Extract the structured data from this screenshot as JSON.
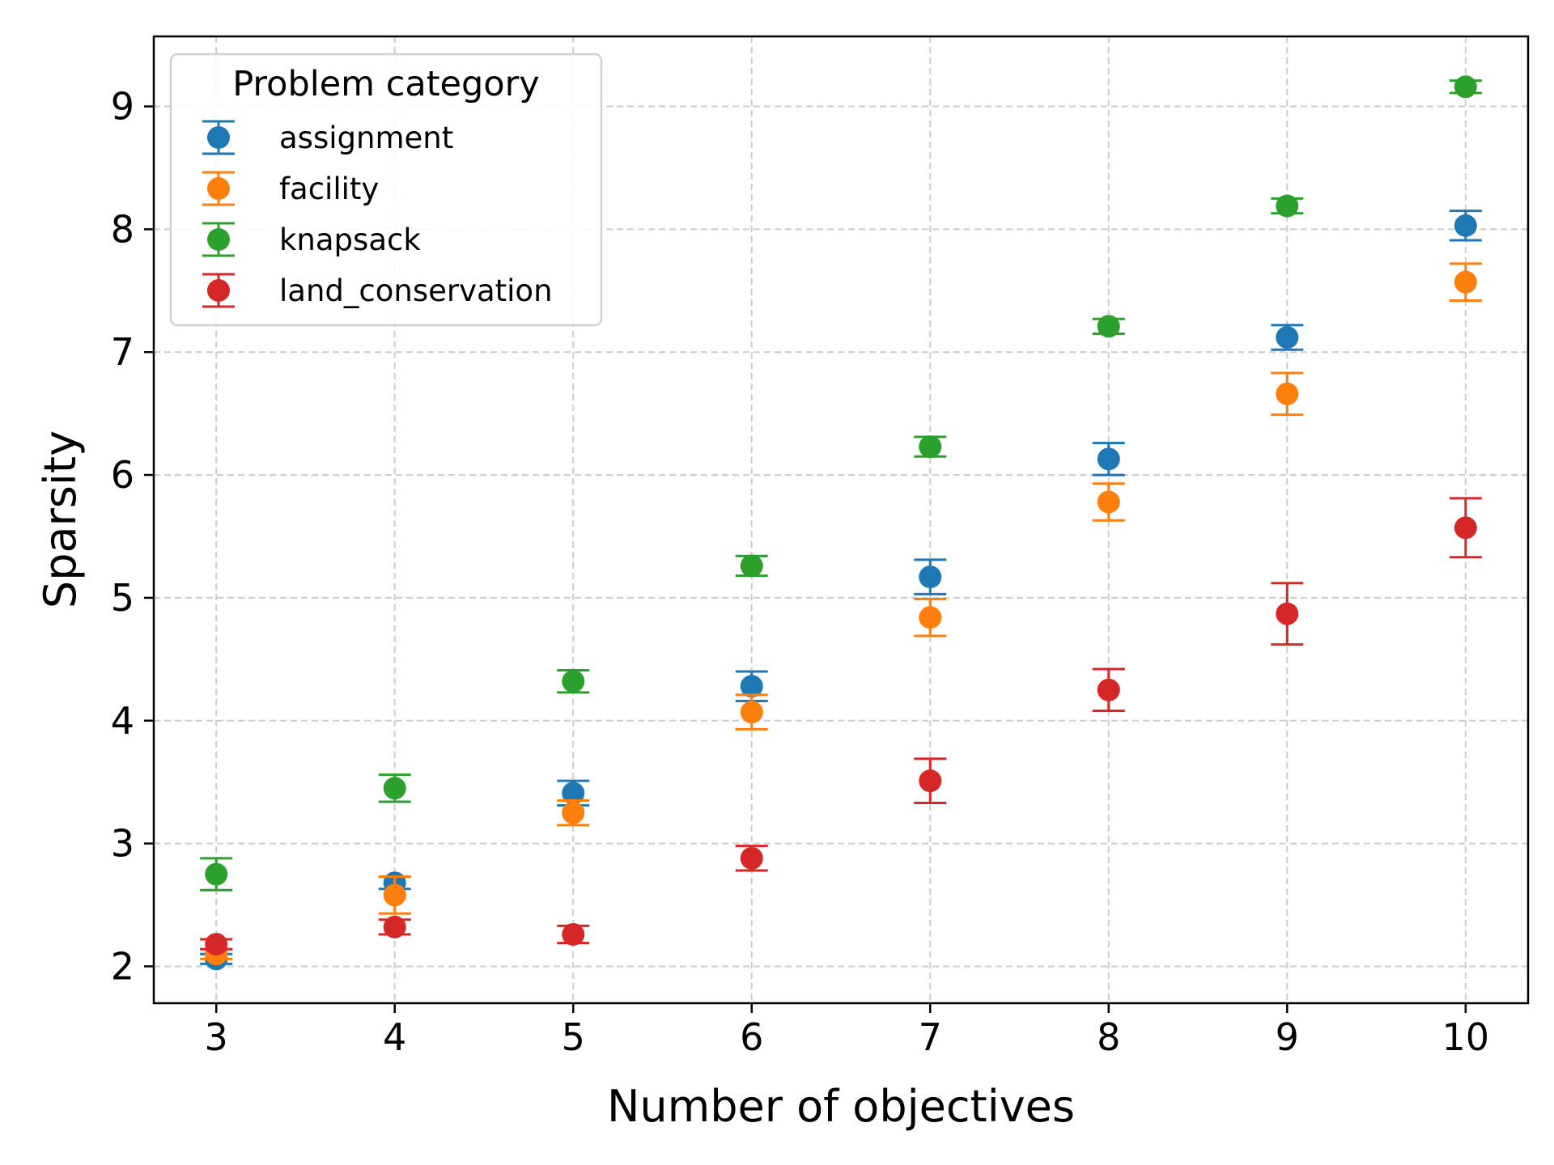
{
  "chart_data": {
    "type": "scatter",
    "title": "",
    "xlabel": "Number of objectives",
    "ylabel": "Sparsity",
    "x": [
      3,
      4,
      5,
      6,
      7,
      8,
      9,
      10
    ],
    "x_ticks": [
      "3",
      "4",
      "5",
      "6",
      "7",
      "8",
      "9",
      "10"
    ],
    "y_ticks": [
      "2",
      "3",
      "4",
      "5",
      "6",
      "7",
      "8",
      "9"
    ],
    "xlim": [
      2.65,
      10.35
    ],
    "ylim": [
      1.7,
      9.57
    ],
    "grid": true,
    "legend": {
      "title": "Problem category",
      "placement": "top-left"
    },
    "series": [
      {
        "name": "assignment",
        "color": "#1f77b4",
        "values": [
          2.06,
          2.68,
          3.41,
          4.28,
          5.17,
          6.13,
          7.12,
          8.03
        ],
        "errors": [
          0.04,
          0.05,
          0.1,
          0.12,
          0.14,
          0.13,
          0.1,
          0.12
        ]
      },
      {
        "name": "facility",
        "color": "#ff7f0e",
        "values": [
          2.1,
          2.58,
          3.25,
          4.07,
          4.84,
          5.78,
          6.66,
          7.57
        ],
        "errors": [
          0.04,
          0.15,
          0.1,
          0.14,
          0.15,
          0.15,
          0.17,
          0.15
        ]
      },
      {
        "name": "knapsack",
        "color": "#2ca02c",
        "values": [
          2.75,
          3.45,
          4.32,
          5.26,
          6.23,
          7.21,
          8.19,
          9.16
        ],
        "errors": [
          0.13,
          0.11,
          0.09,
          0.08,
          0.08,
          0.06,
          0.06,
          0.05
        ]
      },
      {
        "name": "land_conservation",
        "color": "#d62728",
        "values": [
          2.18,
          2.32,
          2.26,
          2.88,
          3.51,
          4.25,
          4.87,
          5.57
        ],
        "errors": [
          0.04,
          0.06,
          0.07,
          0.1,
          0.18,
          0.17,
          0.25,
          0.24
        ]
      }
    ]
  }
}
